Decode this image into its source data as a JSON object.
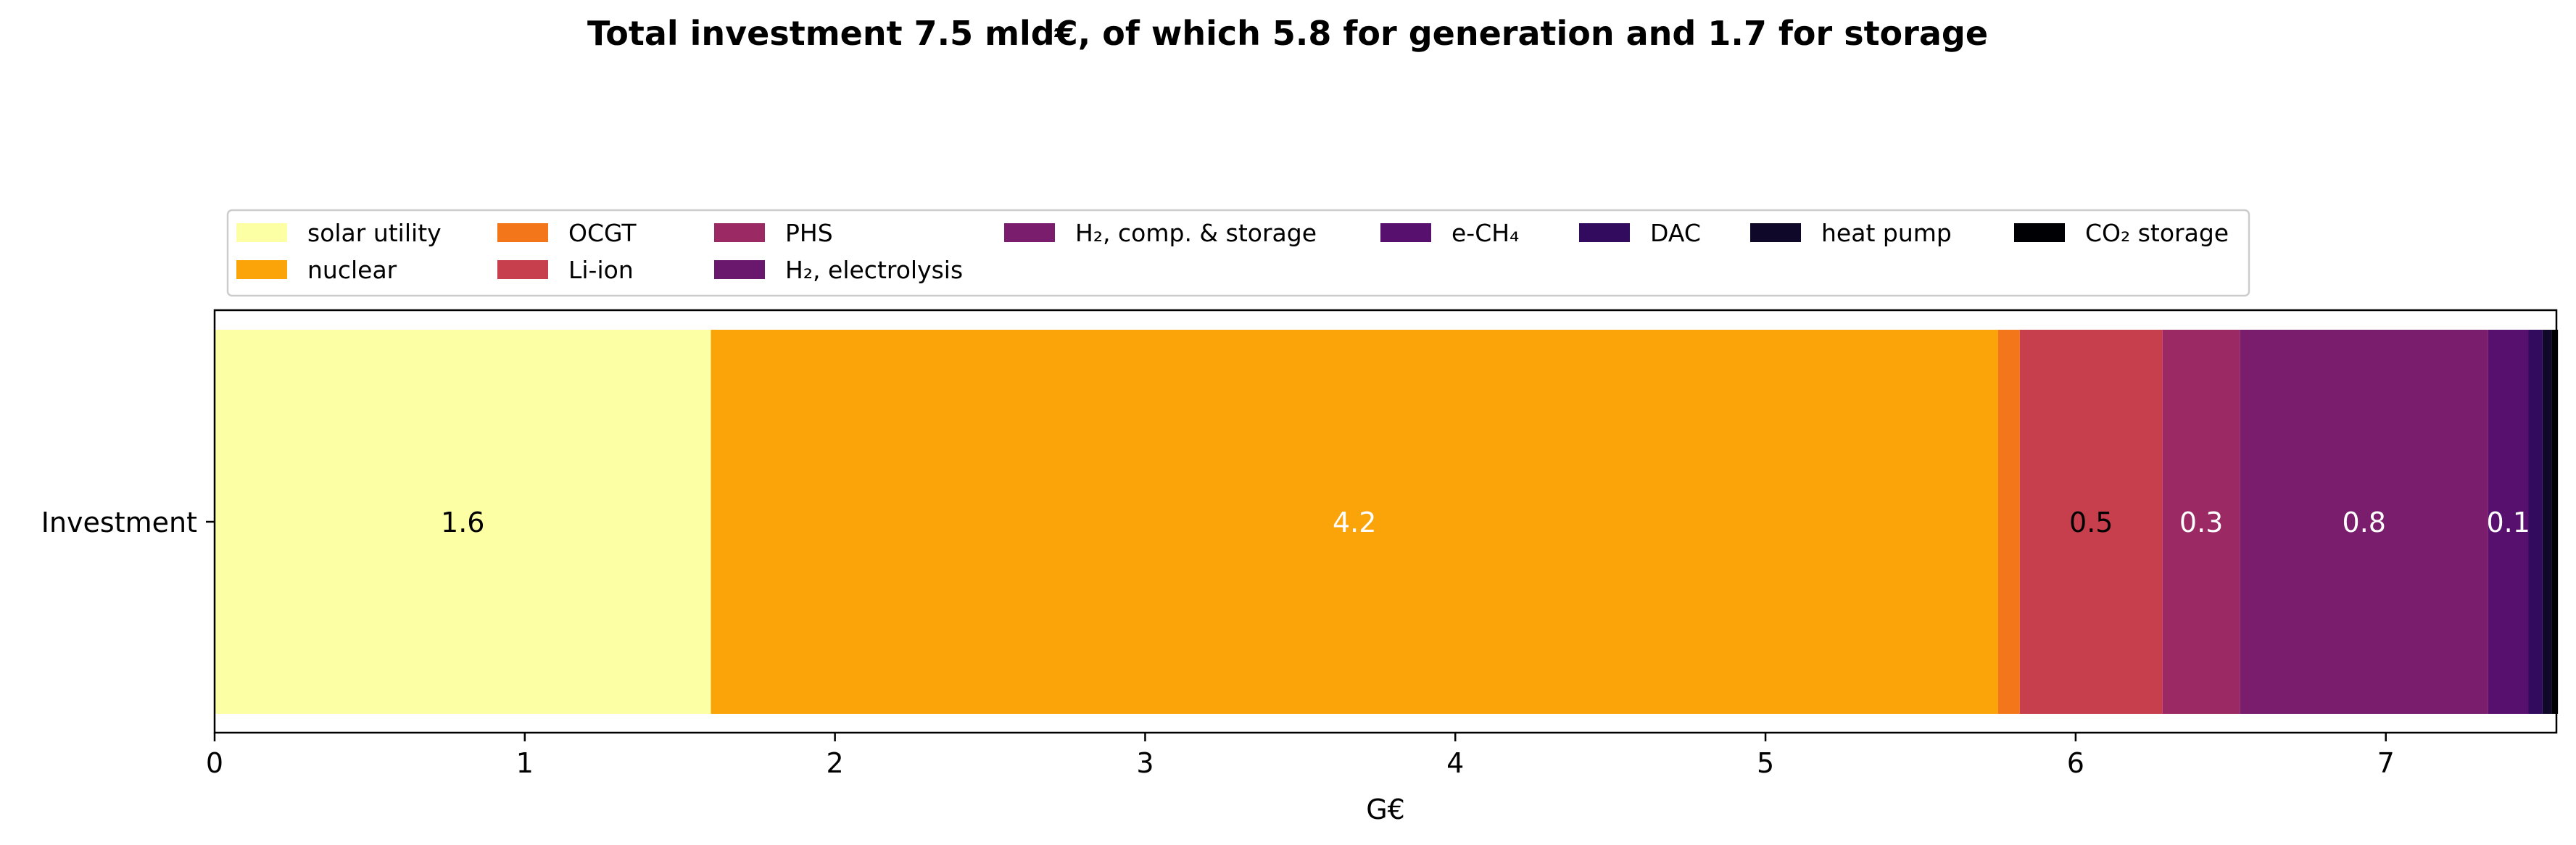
{
  "chart_data": {
    "type": "bar",
    "orientation": "horizontal",
    "stacked": true,
    "title": "Total investment 7.5 mld€, of which 5.8 for generation and 1.7 for storage",
    "xlabel": "G€",
    "ylabel": "",
    "categories": [
      "Investment"
    ],
    "xlim": [
      0,
      7.55
    ],
    "xticks": [
      "0",
      "1",
      "2",
      "3",
      "4",
      "5",
      "6",
      "7"
    ],
    "grid": false,
    "legend_position": "top",
    "series": [
      {
        "name": "solar utility",
        "value": 1.6,
        "color": "#fcffa4",
        "label": "1.6",
        "label_color": "#000000"
      },
      {
        "name": "nuclear",
        "value": 4.15,
        "color": "#fba40a",
        "label": "4.2",
        "label_color": "#ffffff"
      },
      {
        "name": "OCGT",
        "value": 0.07,
        "color": "#f3761b",
        "label": "",
        "label_color": "#000000"
      },
      {
        "name": "Li-ion",
        "value": 0.46,
        "color": "#c73e4c",
        "label": "0.5",
        "label_color": "#000000"
      },
      {
        "name": "PHS",
        "value": 0.25,
        "color": "#9b2964",
        "label": "0.3",
        "label_color": "#ffffff"
      },
      {
        "name": "H₂, electrolysis",
        "value": 0.0,
        "color": "#6a176e",
        "label": "",
        "label_color": "#ffffff"
      },
      {
        "name": "H₂, comp. & storage",
        "value": 0.8,
        "color": "#7a1d6d",
        "label": "0.8",
        "label_color": "#ffffff"
      },
      {
        "name": "e-CH₄",
        "value": 0.13,
        "color": "#57106e",
        "label": "0.1",
        "label_color": "#ffffff"
      },
      {
        "name": "DAC",
        "value": 0.045,
        "color": "#320a5e",
        "label": "",
        "label_color": "#ffffff"
      },
      {
        "name": "heat pump",
        "value": 0.03,
        "color": "#0f0828",
        "label": "",
        "label_color": "#ffffff"
      },
      {
        "name": "CO₂ storage",
        "value": 0.02,
        "color": "#000004",
        "label": "",
        "label_color": "#ffffff"
      }
    ]
  }
}
